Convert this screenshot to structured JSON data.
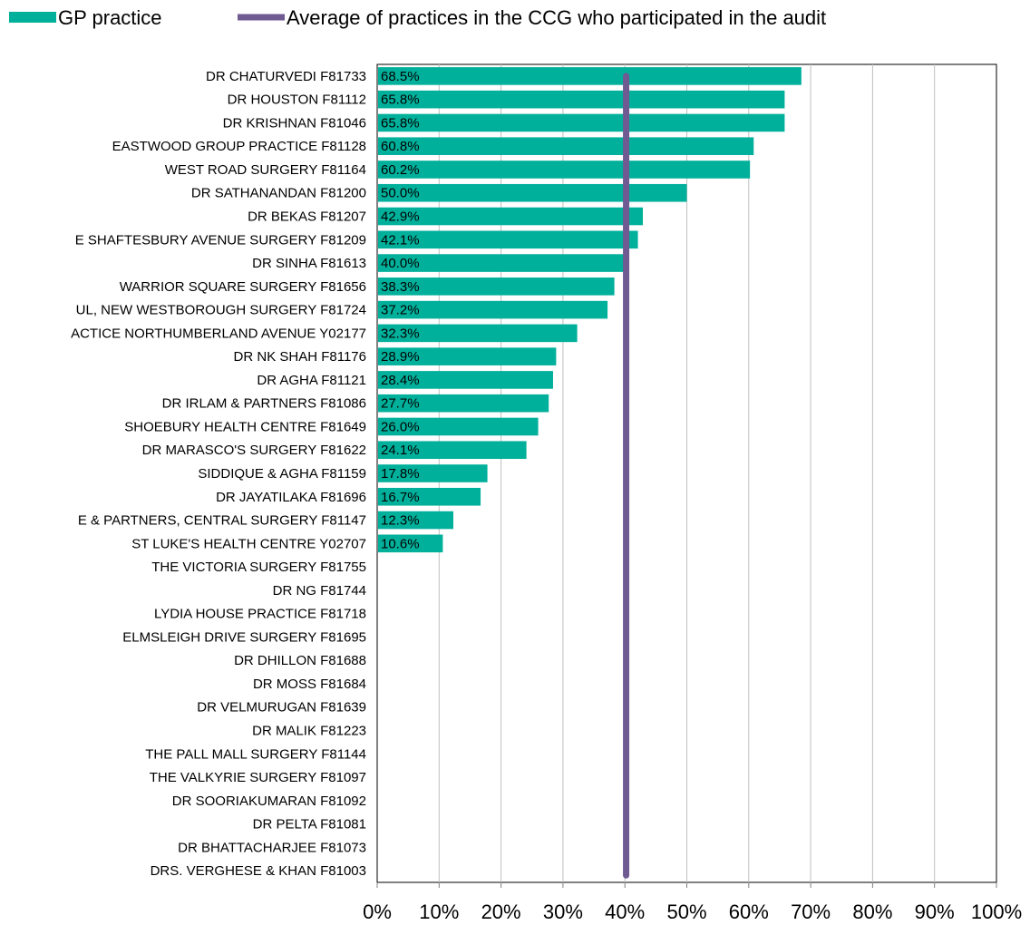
{
  "chart_data": {
    "type": "bar",
    "orientation": "horizontal",
    "categories": [
      "DR CHATURVEDI F81733",
      "DR HOUSTON F81112",
      "DR KRISHNAN F81046",
      "EASTWOOD GROUP PRACTICE F81128",
      "WEST ROAD SURGERY F81164",
      "DR SATHANANDAN F81200",
      "DR BEKAS F81207",
      "E SHAFTESBURY AVENUE SURGERY F81209",
      "DR SINHA F81613",
      "WARRIOR SQUARE SURGERY F81656",
      "UL, NEW WESTBOROUGH SURGERY F81724",
      "ACTICE NORTHUMBERLAND AVENUE Y02177",
      "DR NK SHAH F81176",
      "DR AGHA F81121",
      "DR IRLAM & PARTNERS F81086",
      "SHOEBURY HEALTH CENTRE F81649",
      "DR MARASCO'S SURGERY F81622",
      "SIDDIQUE & AGHA F81159",
      "DR JAYATILAKA F81696",
      "E & PARTNERS, CENTRAL SURGERY F81147",
      "ST LUKE'S HEALTH CENTRE Y02707",
      "THE VICTORIA SURGERY F81755",
      "DR NG F81744",
      "LYDIA HOUSE PRACTICE F81718",
      "ELMSLEIGH DRIVE SURGERY F81695",
      "DR DHILLON F81688",
      "DR MOSS F81684",
      "DR VELMURUGAN F81639",
      "DR MALIK F81223",
      "THE PALL MALL SURGERY F81144",
      "THE VALKYRIE SURGERY F81097",
      "DR SOORIAKUMARAN F81092",
      "DR PELTA F81081",
      "DR BHATTACHARJEE F81073",
      "DRS. VERGHESE & KHAN F81003"
    ],
    "series": [
      {
        "name": "GP practice",
        "type": "bar",
        "color": "#00B09B",
        "values": [
          68.5,
          65.8,
          65.8,
          60.8,
          60.2,
          50.0,
          42.9,
          42.1,
          40.0,
          38.3,
          37.2,
          32.3,
          28.9,
          28.4,
          27.7,
          26.0,
          24.1,
          17.8,
          16.7,
          12.3,
          10.6,
          null,
          null,
          null,
          null,
          null,
          null,
          null,
          null,
          null,
          null,
          null,
          null,
          null,
          null
        ],
        "data_labels": [
          "68.5%",
          "65.8%",
          "65.8%",
          "60.8%",
          "60.2%",
          "50.0%",
          "42.9%",
          "42.1%",
          "40.0%",
          "38.3%",
          "37.2%",
          "32.3%",
          "28.9%",
          "28.4%",
          "27.7%",
          "26.0%",
          "24.1%",
          "17.8%",
          "16.7%",
          "12.3%",
          "10.6%",
          "",
          "",
          "",
          "",
          "",
          "",
          "",
          "",
          "",
          "",
          "",
          "",
          "",
          ""
        ]
      },
      {
        "name": "Average of practices in the CCG who participated in the audit",
        "type": "line",
        "color": "#6F5B92",
        "value": 40.2
      }
    ],
    "xlim": [
      0,
      100
    ],
    "xticks": [
      0,
      10,
      20,
      30,
      40,
      50,
      60,
      70,
      80,
      90,
      100
    ],
    "xtick_labels": [
      "0%",
      "10%",
      "20%",
      "30%",
      "40%",
      "50%",
      "60%",
      "70%",
      "80%",
      "90%",
      "100%"
    ],
    "grid": "vertical",
    "legend_position": "top-left"
  }
}
